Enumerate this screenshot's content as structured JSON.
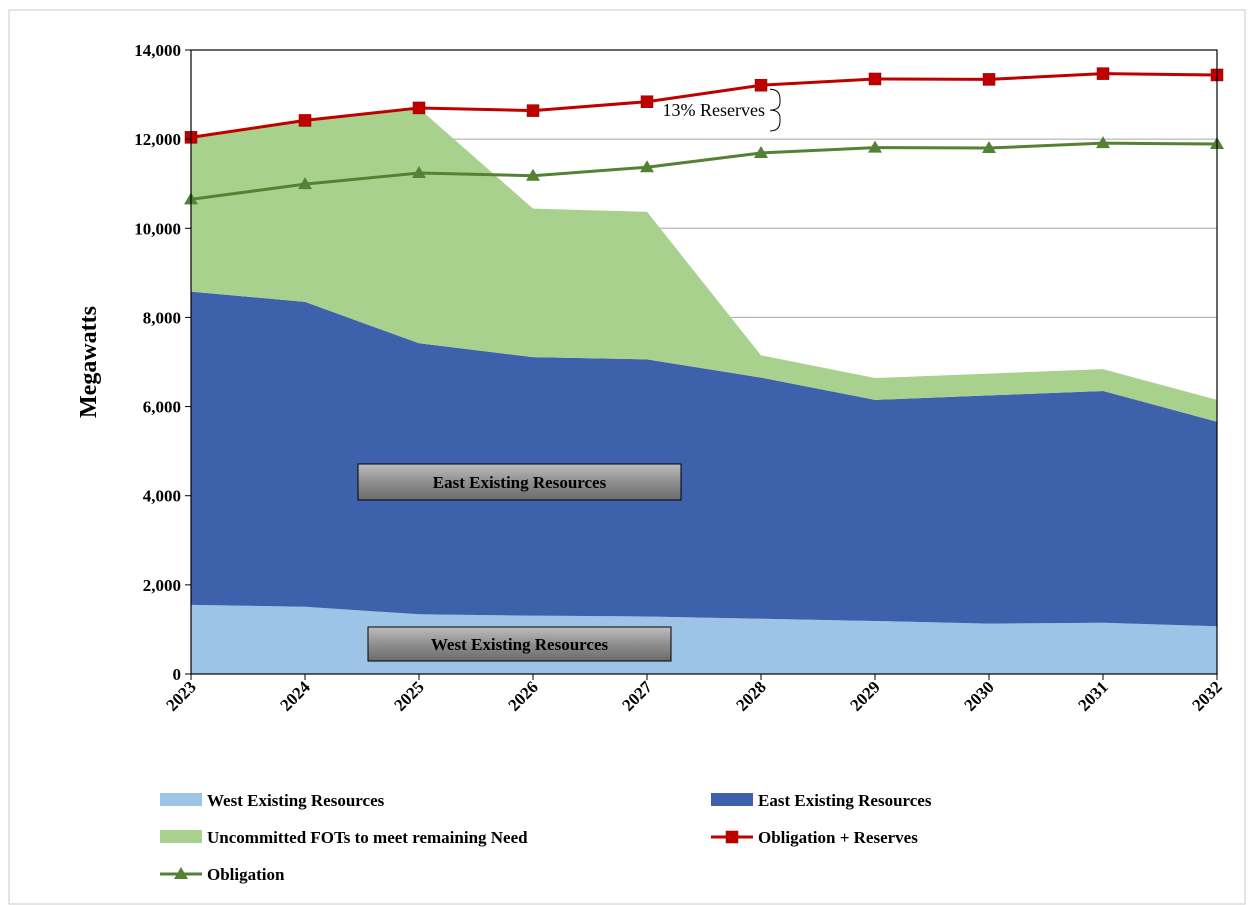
{
  "chart_data": {
    "type": "area",
    "title": "",
    "xlabel": "",
    "ylabel": "Megawatts",
    "ylim": [
      0,
      14000
    ],
    "yticks": [
      0,
      2000,
      4000,
      6000,
      8000,
      10000,
      12000,
      14000
    ],
    "ytick_labels": [
      "0",
      "2,000",
      "4,000",
      "6,000",
      "8,000",
      "10,000",
      "12,000",
      "14,000"
    ],
    "x": [
      "2023",
      "2024",
      "2025",
      "2026",
      "2027",
      "2028",
      "2029",
      "2030",
      "2031",
      "2032"
    ],
    "stacked_areas": [
      {
        "name": "West Existing Resources",
        "color": "#9dc3e6",
        "values": [
          1550,
          1510,
          1340,
          1310,
          1290,
          1240,
          1190,
          1130,
          1150,
          1070
        ]
      },
      {
        "name": "East Existing Resources",
        "color": "#3d62ab",
        "values": [
          7030,
          6840,
          6080,
          5800,
          5770,
          5410,
          4960,
          5120,
          5200,
          4590
        ]
      },
      {
        "name": "Uncommitted FOTs to meet remaining Need",
        "color": "#a9d18e",
        "values": [
          3440,
          4060,
          5270,
          3330,
          3310,
          500,
          490,
          490,
          490,
          490
        ]
      }
    ],
    "lines": [
      {
        "name": "Obligation + Reserves",
        "color": "#c00000",
        "marker": "square",
        "values": [
          12040,
          12420,
          12700,
          12640,
          12840,
          13210,
          13350,
          13340,
          13470,
          13440
        ]
      },
      {
        "name": "Obligation",
        "color": "#548235",
        "marker": "triangle",
        "values": [
          10650,
          10990,
          11240,
          11180,
          11370,
          11690,
          11810,
          11800,
          11910,
          11890
        ]
      }
    ],
    "annotations": [
      {
        "text": "13% Reserves"
      },
      {
        "text": "East Existing Resources"
      },
      {
        "text": "West Existing Resources"
      }
    ],
    "grid": "horizontal",
    "legend": "bottom"
  }
}
